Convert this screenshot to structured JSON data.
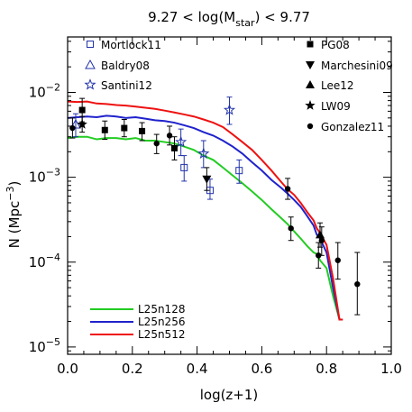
{
  "chart_data": {
    "type": "line",
    "title_parts": {
      "pre": "9.27 < log(M",
      "sub": "star",
      "post": ") < 9.77"
    },
    "xlabel": "log(z+1)",
    "ylabel_parts": {
      "pre": "N (Mpc",
      "sup": "−3",
      "post": ")"
    },
    "xlim": [
      0.0,
      1.0
    ],
    "ylog": true,
    "ylim": [
      8.2e-06,
      0.045
    ],
    "x_ticks": [
      0.0,
      0.2,
      0.4,
      0.6,
      0.8,
      1.0
    ],
    "x_tick_labels": [
      "0.0",
      "0.2",
      "0.4",
      "0.6",
      "0.8",
      "1.0"
    ],
    "y_tick_labels": [
      {
        "value": 1e-05,
        "base": "10",
        "exp": "−5"
      },
      {
        "value": 0.0001,
        "base": "10",
        "exp": "−4"
      },
      {
        "value": 0.001,
        "base": "10",
        "exp": "−3"
      },
      {
        "value": 0.01,
        "base": "10",
        "exp": "−2"
      }
    ],
    "grid": false,
    "series": [
      {
        "name": "L25n128",
        "color": "#22cc22",
        "x": [
          0.0,
          0.03,
          0.06,
          0.09,
          0.12,
          0.15,
          0.18,
          0.21,
          0.24,
          0.27,
          0.3,
          0.33,
          0.36,
          0.39,
          0.42,
          0.45,
          0.48,
          0.51,
          0.54,
          0.57,
          0.6,
          0.63,
          0.66,
          0.68,
          0.7,
          0.72,
          0.74,
          0.76,
          0.77,
          0.78,
          0.8,
          0.82,
          0.84,
          0.85
        ],
        "y": [
          0.0029,
          0.003,
          0.003,
          0.0028,
          0.0029,
          0.0029,
          0.0028,
          0.0029,
          0.0027,
          0.0027,
          0.0026,
          0.0025,
          0.0023,
          0.0021,
          0.0018,
          0.0016,
          0.0013,
          0.00105,
          0.00085,
          0.00068,
          0.00054,
          0.00042,
          0.00033,
          0.00028,
          0.00023,
          0.00019,
          0.000155,
          0.00013,
          0.000125,
          0.000105,
          8.5e-05,
          4e-05,
          2.1e-05,
          2.1e-05
        ]
      },
      {
        "name": "L25n256",
        "color": "#1f22cc",
        "x": [
          0.0,
          0.03,
          0.06,
          0.09,
          0.12,
          0.15,
          0.18,
          0.21,
          0.24,
          0.27,
          0.3,
          0.33,
          0.36,
          0.39,
          0.42,
          0.45,
          0.48,
          0.51,
          0.54,
          0.57,
          0.6,
          0.63,
          0.66,
          0.68,
          0.7,
          0.72,
          0.74,
          0.76,
          0.77,
          0.78,
          0.8,
          0.82,
          0.84,
          0.85
        ],
        "y": [
          0.005,
          0.0051,
          0.0052,
          0.0051,
          0.0053,
          0.0052,
          0.005,
          0.0051,
          0.0049,
          0.0047,
          0.0046,
          0.0044,
          0.0041,
          0.0038,
          0.0034,
          0.0031,
          0.0027,
          0.0023,
          0.0019,
          0.0015,
          0.0012,
          0.00093,
          0.00075,
          0.00064,
          0.00054,
          0.00045,
          0.00035,
          0.00027,
          0.00021,
          0.00019,
          0.00013,
          5e-05,
          2.1e-05,
          2.1e-05
        ]
      },
      {
        "name": "L25n512",
        "color": "#ee1111",
        "x": [
          0.0,
          0.03,
          0.06,
          0.09,
          0.12,
          0.15,
          0.18,
          0.21,
          0.24,
          0.27,
          0.3,
          0.33,
          0.36,
          0.39,
          0.42,
          0.45,
          0.48,
          0.51,
          0.54,
          0.57,
          0.6,
          0.63,
          0.66,
          0.68,
          0.7,
          0.72,
          0.74,
          0.76,
          0.77,
          0.78,
          0.8,
          0.82,
          0.84,
          0.85
        ],
        "y": [
          0.0078,
          0.0077,
          0.0078,
          0.0074,
          0.0073,
          0.0071,
          0.007,
          0.0068,
          0.0066,
          0.0064,
          0.0061,
          0.0058,
          0.0055,
          0.0052,
          0.0048,
          0.0044,
          0.0039,
          0.0032,
          0.0026,
          0.0021,
          0.0016,
          0.0012,
          0.00088,
          0.00072,
          0.00062,
          0.0005,
          0.00039,
          0.00031,
          0.00025,
          0.00022,
          0.00016,
          6.5e-05,
          2.1e-05,
          2.1e-05
        ]
      }
    ],
    "observations": [
      {
        "name": "Mortlock11",
        "marker": "open-square",
        "color": "#2233aa",
        "points": [
          {
            "x": 0.36,
            "y": 0.0013,
            "lo": 0.0009,
            "hi": 0.0018
          },
          {
            "x": 0.44,
            "y": 0.0007,
            "lo": 0.00055,
            "hi": 0.00095
          },
          {
            "x": 0.53,
            "y": 0.0012,
            "lo": 0.00085,
            "hi": 0.0016
          }
        ]
      },
      {
        "name": "Baldry08",
        "marker": "open-triangle",
        "color": "#2233aa",
        "points": [
          {
            "x": 0.025,
            "y": 0.0042,
            "lo": 0.003,
            "hi": 0.0056
          }
        ]
      },
      {
        "name": "Santini12",
        "marker": "open-star",
        "color": "#2233aa",
        "points": [
          {
            "x": 0.35,
            "y": 0.0026,
            "lo": 0.0018,
            "hi": 0.0037
          },
          {
            "x": 0.42,
            "y": 0.0019,
            "lo": 0.0013,
            "hi": 0.0027
          },
          {
            "x": 0.5,
            "y": 0.0062,
            "lo": 0.0042,
            "hi": 0.0088
          }
        ]
      },
      {
        "name": "PG08",
        "marker": "filled-square",
        "color": "#000000",
        "points": [
          {
            "x": 0.045,
            "y": 0.0062,
            "lo": 0.0045,
            "hi": 0.0085
          },
          {
            "x": 0.115,
            "y": 0.0036,
            "lo": 0.0028,
            "hi": 0.0046
          },
          {
            "x": 0.175,
            "y": 0.0038,
            "lo": 0.003,
            "hi": 0.0048
          },
          {
            "x": 0.23,
            "y": 0.0035,
            "lo": 0.0027,
            "hi": 0.0044
          },
          {
            "x": 0.33,
            "y": 0.0022,
            "lo": 0.0016,
            "hi": 0.003
          }
        ]
      },
      {
        "name": "Marchesini09",
        "marker": "filled-triangle-down",
        "color": "#000000",
        "points": [
          {
            "x": 0.43,
            "y": 0.00095,
            "lo": 0.0007,
            "hi": 0.0013
          }
        ]
      },
      {
        "name": "Lee12",
        "marker": "filled-triangle",
        "color": "#000000",
        "points": [
          {
            "x": 0.78,
            "y": 0.00021,
            "lo": 0.00015,
            "hi": 0.00029
          }
        ]
      },
      {
        "name": "LW09",
        "marker": "filled-star",
        "color": "#000000",
        "points": [
          {
            "x": 0.045,
            "y": 0.0042,
            "lo": 0.0034,
            "hi": 0.0052
          }
        ]
      },
      {
        "name": "Gonzalez11",
        "marker": "filled-circle",
        "color": "#000000",
        "points": [
          {
            "x": 0.015,
            "y": 0.0038,
            "lo": 0.0029,
            "hi": 0.005
          },
          {
            "x": 0.275,
            "y": 0.0025,
            "lo": 0.0019,
            "hi": 0.0032
          },
          {
            "x": 0.315,
            "y": 0.0031,
            "lo": 0.0024,
            "hi": 0.004
          },
          {
            "x": 0.68,
            "y": 0.00073,
            "lo": 0.00055,
            "hi": 0.00097
          },
          {
            "x": 0.69,
            "y": 0.00025,
            "lo": 0.00018,
            "hi": 0.00034
          },
          {
            "x": 0.775,
            "y": 0.00012,
            "lo": 8.5e-05,
            "hi": 0.00017
          },
          {
            "x": 0.835,
            "y": 0.000105,
            "lo": 6.3e-05,
            "hi": 0.00017
          },
          {
            "x": 0.895,
            "y": 5.5e-05,
            "lo": 2.4e-05,
            "hi": 0.00013
          },
          {
            "x": 0.785,
            "y": 0.00018,
            "lo": 0.00012,
            "hi": 0.00026
          }
        ]
      }
    ]
  }
}
